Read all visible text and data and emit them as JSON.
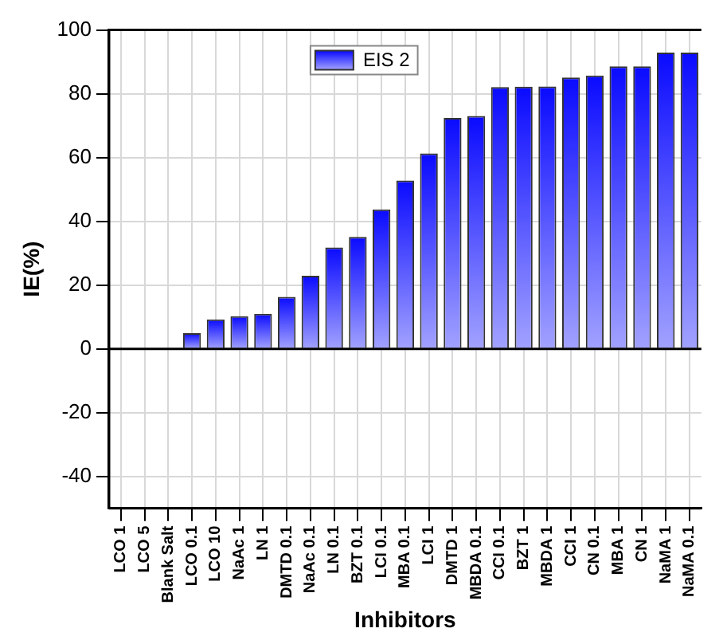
{
  "chart_data": {
    "type": "bar",
    "xlabel": "Inhibitors",
    "ylabel": "IE(%)",
    "categories": [
      "LCO 1",
      "LCO 5",
      "Blank Salt",
      "LCO 0.1",
      "LCO 10",
      "NaAc 1",
      "LN 1",
      "DMTD 0.1",
      "NaAc 0.1",
      "LN 0.1",
      "BZT 0.1",
      "LCI 0.1",
      "MBA 0.1",
      "LCI 1",
      "DMTD 1",
      "MBDA 0.1",
      "CCI 0.1",
      "BZT 1",
      "MBDA 1",
      "CCI 1",
      "CN 0.1",
      "MBA 1",
      "CN 1",
      "NaMA 1",
      "NaMA 0.1"
    ],
    "series": [
      {
        "name": "EIS 2",
        "color": "#0a0aff",
        "values": [
          null,
          null,
          0,
          4.9,
          9.2,
          10.2,
          11.0,
          16.3,
          22.9,
          31.8,
          35.1,
          43.7,
          52.8,
          61.3,
          72.4,
          73.0,
          82.1,
          82.2,
          82.3,
          85.1,
          85.7,
          88.6,
          88.6,
          92.9,
          92.9
        ]
      }
    ],
    "ylim": [
      -50,
      100
    ],
    "yticks": [
      -40,
      -20,
      0,
      20,
      40,
      60,
      80,
      100
    ],
    "grid": true,
    "legend": "top"
  }
}
